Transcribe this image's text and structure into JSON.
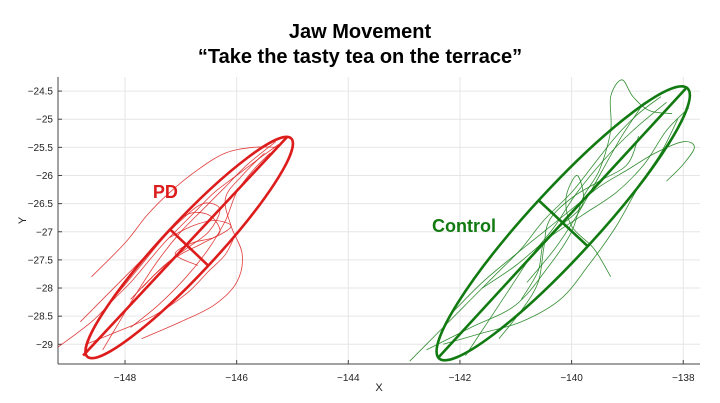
{
  "chart_data": {
    "type": "line",
    "title": "Jaw Movement",
    "subtitle": "“Take the tasty tea on the terrace”",
    "xlabel": "X",
    "ylabel": "Y",
    "xlim": [
      -149.2,
      -137.7
    ],
    "ylim": [
      -29.35,
      -24.25
    ],
    "xticks": [
      -148,
      -146,
      -144,
      -142,
      -140,
      -138
    ],
    "yticks": [
      -24.5,
      -25,
      -25.5,
      -26,
      -26.5,
      -27,
      -27.5,
      -28,
      -28.5,
      -29
    ],
    "grid": true,
    "groups": [
      {
        "label": "PD",
        "color": "#dd1c1c",
        "label_pos": [
          -147.5,
          -26.4
        ],
        "ellipse": {
          "center": [
            -146.85,
            -27.28
          ],
          "major_end_a": [
            -145.1,
            -25.32
          ],
          "major_end_b": [
            -148.75,
            -29.2
          ],
          "minor_half": 0.47
        },
        "traces": [
          [
            [
              -149.2,
              -29.05
            ],
            [
              -148.6,
              -28.6
            ],
            [
              -148.2,
              -28.2
            ],
            [
              -147.9,
              -27.9
            ],
            [
              -147.6,
              -27.55
            ],
            [
              -147.3,
              -27.2
            ],
            [
              -147.0,
              -26.9
            ],
            [
              -146.7,
              -26.6
            ],
            [
              -146.4,
              -26.3
            ],
            [
              -146.0,
              -26.0
            ],
            [
              -145.6,
              -25.7
            ],
            [
              -145.25,
              -25.45
            ]
          ],
          [
            [
              -148.4,
              -29.1
            ],
            [
              -148.1,
              -28.6
            ],
            [
              -147.8,
              -28.1
            ],
            [
              -147.4,
              -27.5
            ],
            [
              -147.0,
              -27.0
            ],
            [
              -146.6,
              -26.6
            ],
            [
              -146.2,
              -26.2
            ],
            [
              -145.8,
              -25.8
            ],
            [
              -145.3,
              -25.4
            ]
          ],
          [
            [
              -148.8,
              -28.6
            ],
            [
              -148.3,
              -28.1
            ],
            [
              -147.6,
              -27.4
            ],
            [
              -147.0,
              -26.8
            ],
            [
              -146.6,
              -26.5
            ],
            [
              -146.3,
              -26.6
            ],
            [
              -146.5,
              -27.0
            ],
            [
              -146.9,
              -27.3
            ],
            [
              -147.3,
              -27.6
            ],
            [
              -147.7,
              -28.0
            ]
          ],
          [
            [
              -147.9,
              -28.7
            ],
            [
              -147.4,
              -28.3
            ],
            [
              -146.9,
              -27.8
            ],
            [
              -146.5,
              -27.3
            ],
            [
              -146.2,
              -26.8
            ],
            [
              -146.0,
              -26.3
            ],
            [
              -145.7,
              -25.9
            ],
            [
              -145.4,
              -25.6
            ]
          ],
          [
            [
              -148.3,
              -28.3
            ],
            [
              -147.8,
              -27.7
            ],
            [
              -147.3,
              -27.1
            ],
            [
              -146.9,
              -26.7
            ],
            [
              -146.5,
              -26.7
            ],
            [
              -146.3,
              -27.0
            ],
            [
              -146.6,
              -27.2
            ],
            [
              -147.0,
              -27.4
            ],
            [
              -147.4,
              -27.7
            ],
            [
              -147.9,
              -28.2
            ]
          ],
          [
            [
              -147.2,
              -27.1
            ],
            [
              -146.8,
              -26.9
            ],
            [
              -146.4,
              -26.8
            ],
            [
              -146.1,
              -26.9
            ],
            [
              -146.4,
              -27.1
            ],
            [
              -146.8,
              -27.2
            ],
            [
              -147.1,
              -27.4
            ],
            [
              -146.7,
              -27.6
            ]
          ],
          [
            [
              -147.7,
              -28.9
            ],
            [
              -147.0,
              -28.6
            ],
            [
              -146.4,
              -28.3
            ],
            [
              -146.0,
              -27.9
            ],
            [
              -145.9,
              -27.4
            ],
            [
              -146.1,
              -26.9
            ],
            [
              -146.2,
              -26.4
            ],
            [
              -145.9,
              -26.0
            ],
            [
              -145.5,
              -25.6
            ]
          ],
          [
            [
              -148.6,
              -27.8
            ],
            [
              -148.0,
              -27.2
            ],
            [
              -147.6,
              -26.7
            ],
            [
              -147.2,
              -26.3
            ],
            [
              -146.7,
              -25.9
            ],
            [
              -146.2,
              -25.6
            ],
            [
              -145.7,
              -25.5
            ],
            [
              -145.3,
              -25.5
            ]
          ],
          [
            [
              -148.7,
              -29.0
            ],
            [
              -148.2,
              -28.8
            ],
            [
              -147.5,
              -28.5
            ],
            [
              -146.9,
              -28.1
            ],
            [
              -146.5,
              -27.7
            ],
            [
              -146.2,
              -27.4
            ],
            [
              -146.0,
              -27.0
            ]
          ]
        ]
      },
      {
        "label": "Control",
        "color": "#117a11",
        "label_pos": [
          -142.5,
          -27.0
        ],
        "ellipse": {
          "center": [
            -140.15,
            -26.85
          ],
          "major_end_a": [
            -137.95,
            -24.45
          ],
          "major_end_b": [
            -142.4,
            -29.25
          ],
          "minor_half": 0.6
        },
        "traces": [
          [
            [
              -142.9,
              -29.3
            ],
            [
              -142.4,
              -28.8
            ],
            [
              -141.9,
              -28.3
            ],
            [
              -141.4,
              -27.8
            ],
            [
              -140.9,
              -27.3
            ],
            [
              -140.5,
              -26.8
            ],
            [
              -140.0,
              -26.3
            ],
            [
              -139.6,
              -25.8
            ],
            [
              -139.2,
              -25.3
            ],
            [
              -138.8,
              -24.9
            ],
            [
              -138.4,
              -24.6
            ]
          ],
          [
            [
              -141.9,
              -29.2
            ],
            [
              -141.5,
              -28.6
            ],
            [
              -141.1,
              -28.0
            ],
            [
              -140.7,
              -27.4
            ],
            [
              -140.3,
              -26.9
            ],
            [
              -139.9,
              -26.3
            ],
            [
              -139.4,
              -25.7
            ],
            [
              -138.9,
              -25.2
            ],
            [
              -138.3,
              -24.7
            ]
          ],
          [
            [
              -142.6,
              -29.1
            ],
            [
              -141.8,
              -28.7
            ],
            [
              -141.0,
              -28.3
            ],
            [
              -140.4,
              -27.6
            ],
            [
              -140.0,
              -27.0
            ],
            [
              -139.8,
              -26.4
            ],
            [
              -139.5,
              -25.9
            ],
            [
              -139.3,
              -25.2
            ],
            [
              -139.3,
              -24.6
            ],
            [
              -139.1,
              -24.3
            ],
            [
              -138.9,
              -24.6
            ],
            [
              -138.6,
              -24.85
            ],
            [
              -138.2,
              -24.9
            ]
          ],
          [
            [
              -141.3,
              -28.9
            ],
            [
              -140.9,
              -28.4
            ],
            [
              -140.6,
              -27.9
            ],
            [
              -140.5,
              -27.3
            ],
            [
              -140.4,
              -26.8
            ],
            [
              -140.0,
              -26.4
            ],
            [
              -139.5,
              -26.1
            ],
            [
              -139.0,
              -25.8
            ],
            [
              -138.8,
              -25.3
            ]
          ],
          [
            [
              -142.2,
              -28.5
            ],
            [
              -141.6,
              -27.9
            ],
            [
              -141.0,
              -27.4
            ],
            [
              -140.5,
              -27.0
            ],
            [
              -140.0,
              -26.6
            ],
            [
              -139.5,
              -26.2
            ],
            [
              -139.0,
              -25.9
            ],
            [
              -138.5,
              -25.6
            ],
            [
              -138.0,
              -25.4
            ],
            [
              -137.8,
              -25.5
            ],
            [
              -138.0,
              -25.8
            ],
            [
              -138.3,
              -26.1
            ]
          ],
          [
            [
              -140.9,
              -28.2
            ],
            [
              -140.6,
              -27.7
            ],
            [
              -140.5,
              -27.2
            ],
            [
              -140.2,
              -26.9
            ],
            [
              -139.8,
              -26.5
            ],
            [
              -139.9,
              -26.0
            ],
            [
              -140.1,
              -26.4
            ],
            [
              -140.0,
              -26.9
            ],
            [
              -139.6,
              -27.3
            ],
            [
              -139.3,
              -27.8
            ]
          ],
          [
            [
              -141.6,
              -28.0
            ],
            [
              -141.0,
              -27.6
            ],
            [
              -140.4,
              -27.1
            ],
            [
              -139.8,
              -26.7
            ],
            [
              -139.2,
              -26.3
            ],
            [
              -138.7,
              -25.8
            ],
            [
              -138.3,
              -25.2
            ],
            [
              -137.9,
              -24.8
            ]
          ],
          [
            [
              -142.3,
              -29.0
            ],
            [
              -141.6,
              -28.8
            ],
            [
              -140.9,
              -28.6
            ],
            [
              -140.2,
              -28.2
            ],
            [
              -139.7,
              -27.6
            ],
            [
              -139.2,
              -26.9
            ],
            [
              -138.8,
              -26.2
            ],
            [
              -138.4,
              -25.6
            ],
            [
              -138.1,
              -25.0
            ]
          ],
          [
            [
              -140.8,
              -27.9
            ],
            [
              -140.3,
              -27.3
            ],
            [
              -139.9,
              -26.7
            ],
            [
              -139.5,
              -26.0
            ],
            [
              -139.1,
              -25.3
            ],
            [
              -138.7,
              -24.7
            ]
          ]
        ]
      }
    ]
  }
}
